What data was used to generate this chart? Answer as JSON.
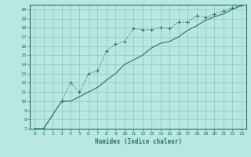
{
  "xlabel": "Humidex (Indice chaleur)",
  "ylabel": "",
  "bg_color": "#b8e8e0",
  "line_color": "#2d6e6e",
  "grid_color": "#8cc8b8",
  "xlim": [
    -0.5,
    23.5
  ],
  "ylim": [
    7,
    20.5
  ],
  "xticks": [
    0,
    1,
    2,
    3,
    4,
    5,
    6,
    7,
    8,
    9,
    10,
    11,
    12,
    13,
    14,
    15,
    16,
    17,
    18,
    19,
    20,
    21,
    22,
    23
  ],
  "yticks": [
    7,
    8,
    9,
    10,
    11,
    12,
    13,
    14,
    15,
    16,
    17,
    18,
    19,
    20
  ],
  "line1_x": [
    0,
    1,
    3,
    4,
    5,
    6,
    7,
    8,
    9,
    10,
    11,
    12,
    13,
    14,
    15,
    16,
    17,
    18,
    19,
    20,
    21,
    22,
    23
  ],
  "line1_y": [
    7,
    7,
    10,
    12,
    11,
    13,
    13.3,
    15.5,
    16.2,
    16.5,
    17.9,
    17.8,
    17.8,
    18.0,
    17.9,
    18.6,
    18.6,
    19.3,
    19.1,
    19.5,
    19.8,
    20.2,
    20.5
  ],
  "line2_x": [
    0,
    1,
    3,
    4,
    5,
    6,
    7,
    8,
    9,
    10,
    11,
    12,
    13,
    14,
    15,
    16,
    17,
    18,
    19,
    20,
    21,
    22,
    23
  ],
  "line2_y": [
    7,
    7,
    10,
    10.0,
    10.5,
    11.0,
    11.5,
    12.3,
    13.0,
    14.0,
    14.5,
    15.0,
    15.8,
    16.3,
    16.5,
    17.0,
    17.7,
    18.2,
    18.8,
    19.2,
    19.5,
    20.0,
    20.4
  ]
}
